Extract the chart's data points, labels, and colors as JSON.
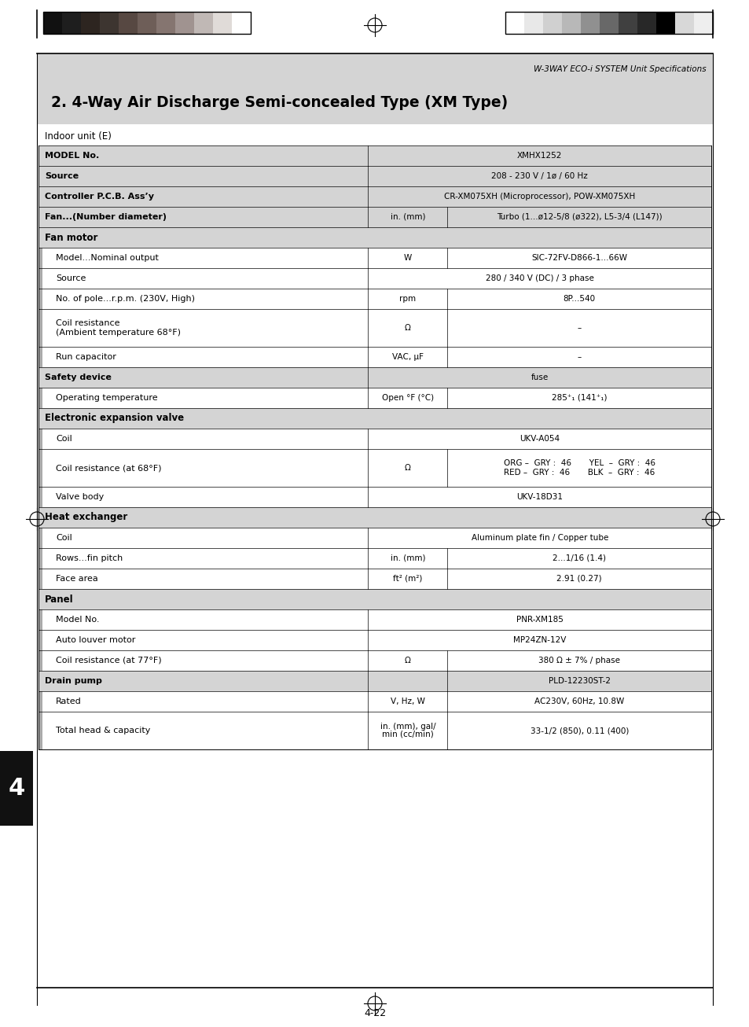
{
  "page_title": "W-3WAY ECO-i SYSTEM Unit Specifications",
  "section_title": "2. 4-Way Air Discharge Semi-concealed Type (XM Type)",
  "table_label": "Indoor unit (E)",
  "page_number": "4-22",
  "chapter_number": "4",
  "rows": [
    {
      "label": "MODEL No.",
      "unit": "",
      "value": "XMHX1252",
      "level": 0,
      "bold_label": true,
      "header_row": false,
      "span_label": true
    },
    {
      "label": "Source",
      "unit": "",
      "value": "208 - 230 V / 1ø / 60 Hz",
      "level": 0,
      "bold_label": true,
      "header_row": false,
      "span_label": true
    },
    {
      "label": "Controller P.C.B. Ass’y",
      "unit": "",
      "value": "CR-XM075XH (Microprocessor), POW-XM075XH",
      "level": 0,
      "bold_label": true,
      "header_row": false,
      "span_label": true
    },
    {
      "label": "Fan...(Number diameter)",
      "unit": "in. (mm)",
      "value": "Turbo (1...ø12-5/8 (ø322), L5-3/4 (L147))",
      "level": 0,
      "bold_label": true,
      "header_row": false,
      "span_label": false
    },
    {
      "label": "Fan motor",
      "unit": "",
      "value": "",
      "level": 0,
      "bold_label": true,
      "header_row": true,
      "span_label": true
    },
    {
      "label": "Model...Nominal output",
      "unit": "W",
      "value": "SIC-72FV-D866-1...66W",
      "level": 1,
      "bold_label": false,
      "header_row": false,
      "span_label": false
    },
    {
      "label": "Source",
      "unit": "",
      "value": "280 / 340 V (DC) / 3 phase",
      "level": 1,
      "bold_label": false,
      "header_row": false,
      "span_label": true
    },
    {
      "label": "No. of pole...r.p.m. (230V, High)",
      "unit": "rpm",
      "value": "8P...540",
      "level": 1,
      "bold_label": false,
      "header_row": false,
      "span_label": false
    },
    {
      "label": "Coil resistance\n(Ambient temperature 68°F)",
      "unit": "Ω",
      "value": "–",
      "level": 1,
      "bold_label": false,
      "header_row": false,
      "span_label": false,
      "tall": true
    },
    {
      "label": "Run capacitor",
      "unit": "VAC, μF",
      "value": "–",
      "level": 1,
      "bold_label": false,
      "header_row": false,
      "span_label": false
    },
    {
      "label": "Safety device",
      "unit": "",
      "value": "fuse",
      "level": 0,
      "bold_label": true,
      "header_row": false,
      "span_label": true
    },
    {
      "label": "Operating temperature",
      "unit": "Open °F (°C)",
      "value": "285⁺₁ (141⁺₁)",
      "level": 1,
      "bold_label": false,
      "header_row": false,
      "span_label": false
    },
    {
      "label": "Electronic expansion valve",
      "unit": "",
      "value": "",
      "level": 0,
      "bold_label": true,
      "header_row": true,
      "span_label": true
    },
    {
      "label": "Coil",
      "unit": "",
      "value": "UKV-A054",
      "level": 1,
      "bold_label": false,
      "header_row": false,
      "span_label": true
    },
    {
      "label": "Coil resistance (at 68°F)",
      "unit": "Ω",
      "value": "ORG –  GRY :  46       YEL  –  GRY :  46\nRED –  GRY :  46       BLK  –  GRY :  46",
      "level": 1,
      "bold_label": false,
      "header_row": false,
      "span_label": false,
      "tall": true
    },
    {
      "label": "Valve body",
      "unit": "",
      "value": "UKV-18D31",
      "level": 1,
      "bold_label": false,
      "header_row": false,
      "span_label": true
    },
    {
      "label": "Heat exchanger",
      "unit": "",
      "value": "",
      "level": 0,
      "bold_label": true,
      "header_row": true,
      "span_label": true
    },
    {
      "label": "Coil",
      "unit": "",
      "value": "Aluminum plate fin / Copper tube",
      "level": 1,
      "bold_label": false,
      "header_row": false,
      "span_label": true
    },
    {
      "label": "Rows...fin pitch",
      "unit": "in. (mm)",
      "value": "2...1/16 (1.4)",
      "level": 1,
      "bold_label": false,
      "header_row": false,
      "span_label": false
    },
    {
      "label": "Face area",
      "unit": "ft² (m²)",
      "value": "2.91 (0.27)",
      "level": 1,
      "bold_label": false,
      "header_row": false,
      "span_label": false
    },
    {
      "label": "Panel",
      "unit": "",
      "value": "",
      "level": 0,
      "bold_label": true,
      "header_row": true,
      "span_label": true
    },
    {
      "label": "Model No.",
      "unit": "",
      "value": "PNR-XM185",
      "level": 1,
      "bold_label": false,
      "header_row": false,
      "span_label": true
    },
    {
      "label": "Auto louver motor",
      "unit": "",
      "value": "MP24ZN-12V",
      "level": 1,
      "bold_label": false,
      "header_row": false,
      "span_label": true
    },
    {
      "label": "Coil resistance (at 77°F)",
      "unit": "Ω",
      "value": "380 Ω ± 7% / phase",
      "level": 1,
      "bold_label": false,
      "header_row": false,
      "span_label": false
    },
    {
      "label": "Drain pump",
      "unit": "",
      "value": "PLD-12230ST-2",
      "level": 0,
      "bold_label": true,
      "header_row": false,
      "span_label": false,
      "drain_pump": true
    },
    {
      "label": "Rated",
      "unit": "V, Hz, W",
      "value": "AC230V, 60Hz, 10.8W",
      "level": 1,
      "bold_label": false,
      "header_row": false,
      "span_label": false
    },
    {
      "label": "Total head & capacity",
      "unit": "in. (mm), gal/\nmin (cc/min)",
      "value": "33-1/2 (850), 0.11 (400)",
      "level": 1,
      "bold_label": false,
      "header_row": false,
      "span_label": false,
      "tall": true
    }
  ],
  "left_swatches": [
    "#111111",
    "#1e1e1e",
    "#2d2520",
    "#3d3530",
    "#574842",
    "#6e5e58",
    "#857570",
    "#a09390",
    "#c0b8b5",
    "#e0dbd8",
    "#ffffff"
  ],
  "right_swatches": [
    "#ffffff",
    "#e8e8e8",
    "#d0d0d0",
    "#b8b8b8",
    "#909090",
    "#686868",
    "#404040",
    "#282828",
    "#000000",
    "#d8d8d8",
    "#eeeeee"
  ],
  "colors": {
    "header_bg": "#d4d4d4",
    "white": "#ffffff",
    "border": "#000000",
    "page_bg": "#ffffff",
    "title_bg": "#d4d4d4",
    "level_bar": "#999999"
  }
}
